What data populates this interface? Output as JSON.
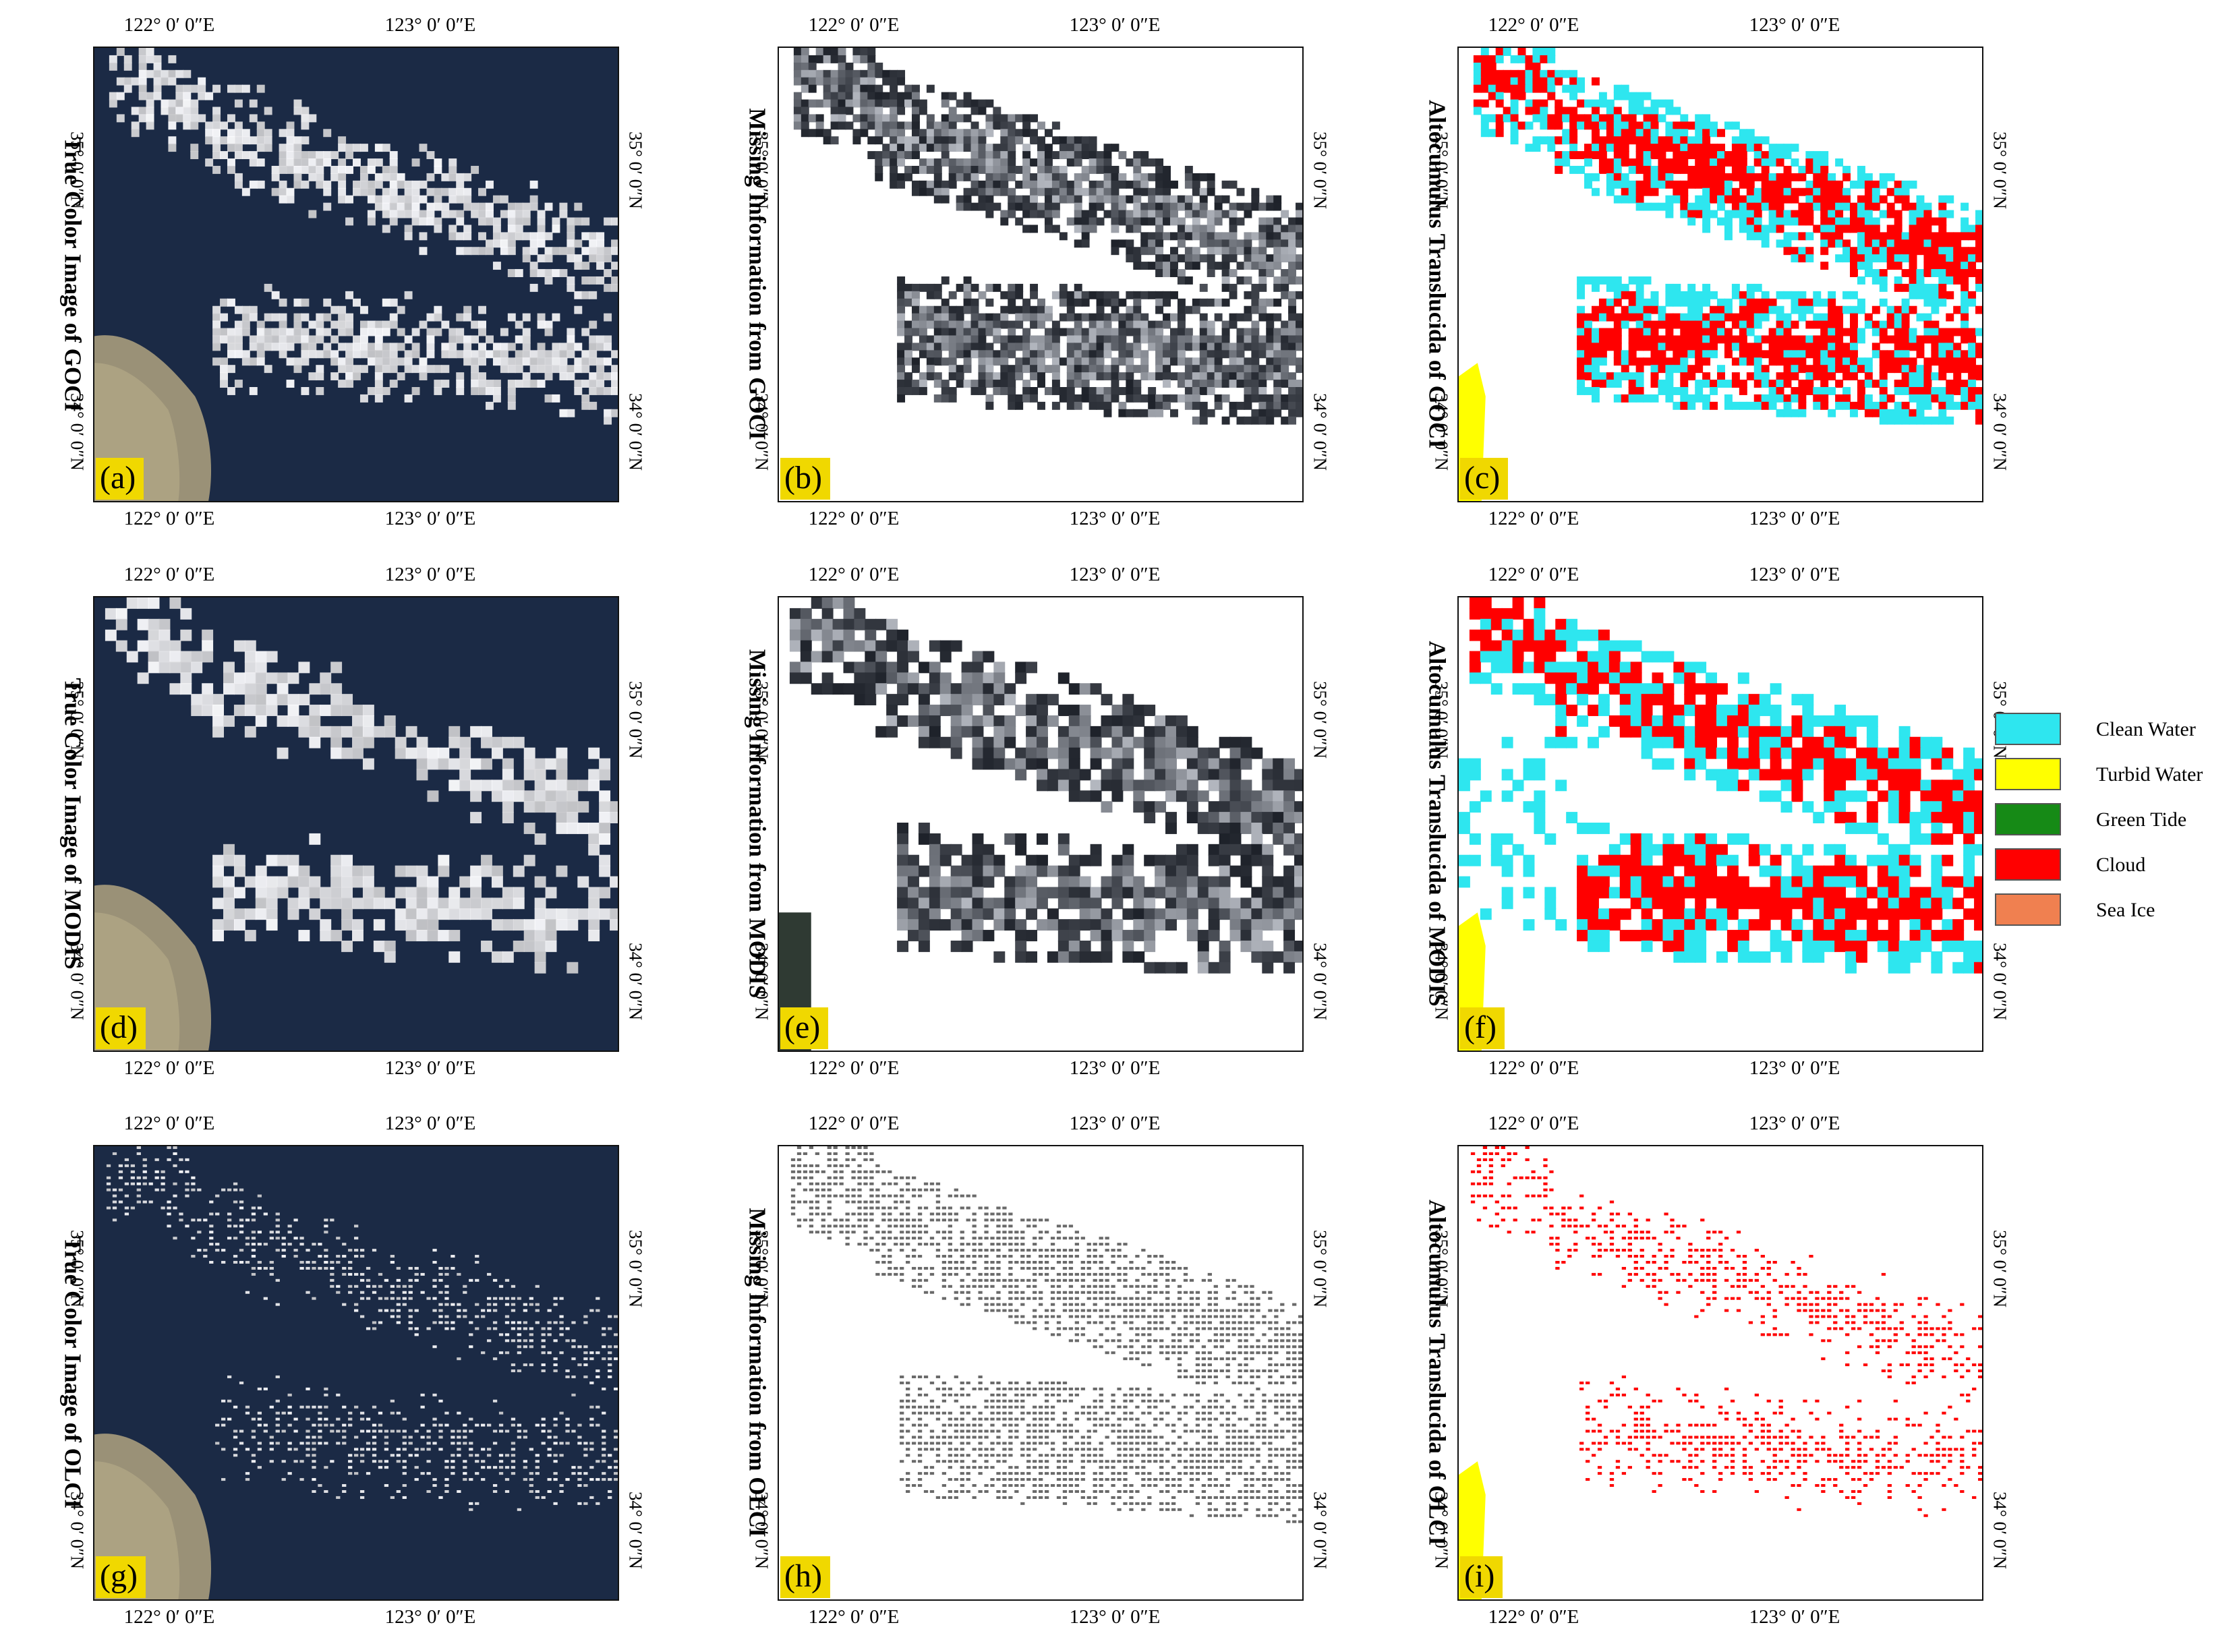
{
  "figure": {
    "rows": [
      {
        "sensor": "GOCI",
        "panels": [
          {
            "id": "a",
            "label": "(a)",
            "kind": "true-color",
            "title": "True Color Image of GOCI"
          },
          {
            "id": "b",
            "label": "(b)",
            "kind": "missing",
            "title": "Missing Information from GOCI"
          },
          {
            "id": "c",
            "label": "(c)",
            "kind": "classification",
            "title": "Altocumulus Translucida of GOCI"
          }
        ]
      },
      {
        "sensor": "MODIS",
        "panels": [
          {
            "id": "d",
            "label": "(d)",
            "kind": "true-color",
            "title": "True Color Image of MODIS"
          },
          {
            "id": "e",
            "label": "(e)",
            "kind": "missing",
            "title": "Missing Information from MODIS"
          },
          {
            "id": "f",
            "label": "(f)",
            "kind": "classification",
            "title": "Altocumulus Translucida of MODIS"
          }
        ]
      },
      {
        "sensor": "OLCI",
        "panels": [
          {
            "id": "g",
            "label": "(g)",
            "kind": "true-color",
            "title": "True Color Image of OLCI"
          },
          {
            "id": "h",
            "label": "(h)",
            "kind": "missing",
            "title": "Missing Information from OLCI"
          },
          {
            "id": "i",
            "label": "(i)",
            "kind": "classification",
            "title": "Altocumulus Translucida of OLCI"
          }
        ]
      }
    ],
    "graticule": {
      "lon_labels": [
        "122° 0′ 0″E",
        "123° 0′ 0″E"
      ],
      "lat_labels": [
        "35° 0′ 0″N",
        "34° 0′ 0″N"
      ]
    },
    "legend": [
      {
        "label": "Clean Water",
        "color": "#2ee6ef"
      },
      {
        "label": "Turbid Water",
        "color": "#ffff00"
      },
      {
        "label": "Green Tide",
        "color": "#168a16"
      },
      {
        "label": "Cloud",
        "color": "#ff0000"
      },
      {
        "label": "Sea Ice",
        "color": "#f08050"
      }
    ],
    "colors": {
      "ocean": "#1b2a45",
      "sediment": "#a89c7c",
      "cloud_white": "#f2f4f8",
      "missing_dark": "#22262c",
      "label_bg": "#f0d800"
    }
  }
}
